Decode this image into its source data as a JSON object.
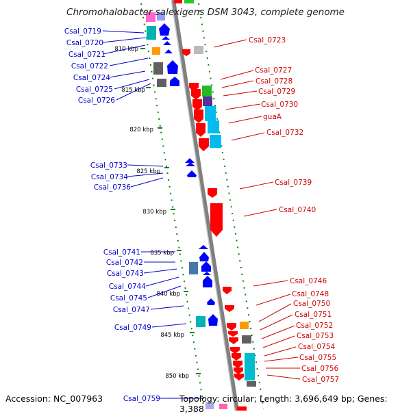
{
  "title": "Chromohalobacter salexigens DSM 3043, complete genome",
  "footer": {
    "accession": "Accession: NC_007963",
    "topology": "Topology: circular; Length: 3,696,649 bp; Genes: 3,388"
  },
  "colors": {
    "forward_strand": "#ff0000",
    "reverse_strand": "#0000ff",
    "backbone": "#808080",
    "tick": "#008000",
    "label_left": "#0000cc",
    "label_right": "#cc0000"
  },
  "scale_ticks": [
    {
      "label": "810 kbp"
    },
    {
      "label": "815 kbp"
    },
    {
      "label": "820 kbp"
    },
    {
      "label": "825 kbp"
    },
    {
      "label": "830 kbp"
    },
    {
      "label": "835 kbp"
    },
    {
      "label": "840 kbp"
    },
    {
      "label": "845 kbp"
    },
    {
      "label": "850 kbp"
    }
  ],
  "genes_left": [
    {
      "label": "Csal_0719"
    },
    {
      "label": "Csal_0720"
    },
    {
      "label": "Csal_0721"
    },
    {
      "label": "Csal_0722"
    },
    {
      "label": "Csal_0724"
    },
    {
      "label": "Csal_0725"
    },
    {
      "label": "Csal_0726"
    },
    {
      "label": "Csal_0733"
    },
    {
      "label": "Csal_0734"
    },
    {
      "label": "Csal_0736"
    },
    {
      "label": "Csal_0741"
    },
    {
      "label": "Csal_0742"
    },
    {
      "label": "Csal_0743"
    },
    {
      "label": "Csal_0744"
    },
    {
      "label": "Csal_0745"
    },
    {
      "label": "Csal_0747"
    },
    {
      "label": "Csal_0749"
    },
    {
      "label": "Csal_0759"
    }
  ],
  "genes_right": [
    {
      "label": "Csal_0723"
    },
    {
      "label": "Csal_0727"
    },
    {
      "label": "Csal_0728"
    },
    {
      "label": "Csal_0729"
    },
    {
      "label": "Csal_0730"
    },
    {
      "label": "guaA"
    },
    {
      "label": "Csal_0732"
    },
    {
      "label": "Csal_0739"
    },
    {
      "label": "Csal_0740"
    },
    {
      "label": "Csal_0746"
    },
    {
      "label": "Csal_0748"
    },
    {
      "label": "Csal_0750"
    },
    {
      "label": "Csal_0751"
    },
    {
      "label": "Csal_0752"
    },
    {
      "label": "Csal_0753"
    },
    {
      "label": "Csal_0754"
    },
    {
      "label": "Csal_0755"
    },
    {
      "label": "Csal_0756"
    },
    {
      "label": "Csal_0757"
    }
  ]
}
